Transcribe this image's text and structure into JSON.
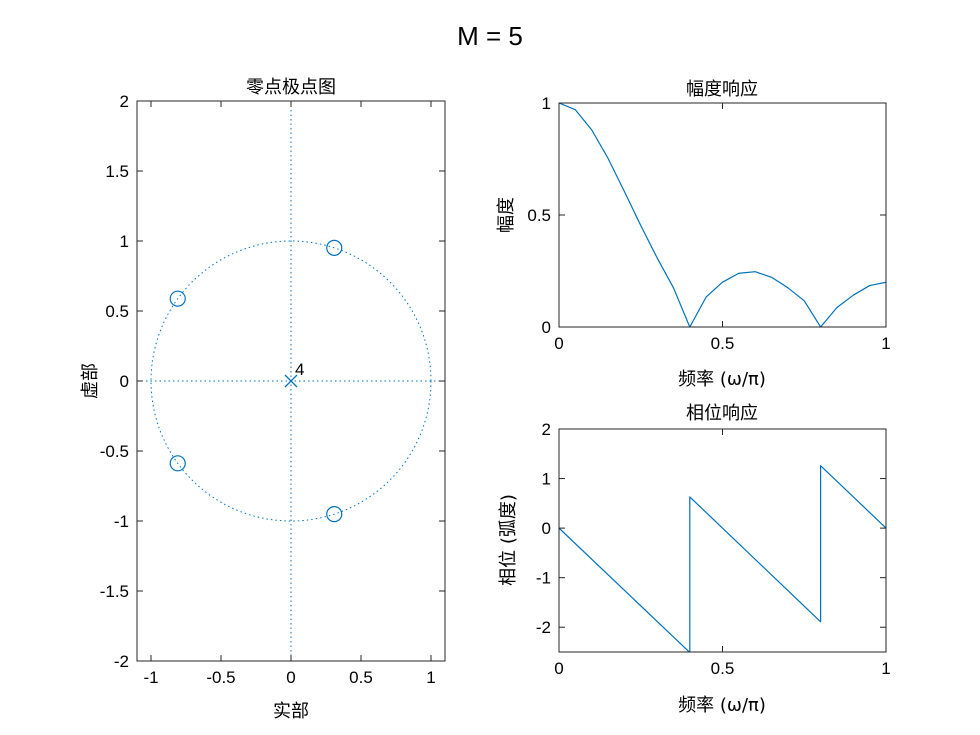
{
  "figure_title": "M = 5",
  "colors": {
    "series": "#0072BD",
    "axes": "#262626",
    "background": "#ffffff"
  },
  "chart_data": [
    {
      "type": "scatter",
      "title": "零点极点图",
      "xlabel": "实部",
      "ylabel": "虚部",
      "xlim": [
        -1.1,
        1.1
      ],
      "ylim": [
        -2,
        2
      ],
      "xticks": [
        -1,
        -0.5,
        0,
        0.5,
        1
      ],
      "xtick_labels": [
        "-1",
        "-0.5",
        "0",
        "0.5",
        "1"
      ],
      "yticks": [
        -2,
        -1.5,
        -1,
        -0.5,
        0,
        0.5,
        1,
        1.5,
        2
      ],
      "ytick_labels": [
        "-2",
        "-1.5",
        "-1",
        "-0.5",
        "0",
        "0.5",
        "1",
        "1.5",
        "2"
      ],
      "zeros": [
        {
          "x": 0.309,
          "y": 0.951
        },
        {
          "x": -0.809,
          "y": 0.588
        },
        {
          "x": -0.809,
          "y": -0.588
        },
        {
          "x": 0.309,
          "y": -0.951
        }
      ],
      "poles": [
        {
          "x": 0,
          "y": 0
        }
      ],
      "pole_multiplicity_label": "4",
      "unit_circle": true,
      "axis_lines": "dotted"
    },
    {
      "type": "line",
      "title": "幅度响应",
      "xlabel": "频率 (ω/π)",
      "ylabel": "幅度",
      "xlim": [
        0,
        1
      ],
      "ylim": [
        0,
        1
      ],
      "xticks": [
        0,
        0.5,
        1
      ],
      "xtick_labels": [
        "0",
        "0.5",
        "1"
      ],
      "yticks": [
        0,
        0.5,
        1
      ],
      "ytick_labels": [
        "0",
        "0.5",
        "1"
      ],
      "x": [
        0,
        0.05,
        0.1,
        0.15,
        0.2,
        0.25,
        0.3,
        0.35,
        0.4,
        0.45,
        0.5,
        0.55,
        0.6,
        0.65,
        0.7,
        0.75,
        0.8,
        0.85,
        0.9,
        0.95,
        1
      ],
      "series": [
        {
          "values": [
            1,
            0.97,
            0.88,
            0.753,
            0.605,
            0.453,
            0.309,
            0.175,
            0,
            0.134,
            0.2,
            0.24,
            0.247,
            0.222,
            0.175,
            0.117,
            0,
            0.087,
            0.142,
            0.185,
            0.2
          ]
        }
      ]
    },
    {
      "type": "line",
      "title": "相位响应",
      "xlabel": "频率 (ω/π)",
      "ylabel": "相位 (弧度)",
      "xlim": [
        0,
        1
      ],
      "ylim": [
        -2.5,
        2
      ],
      "xticks": [
        0,
        0.5,
        1
      ],
      "xtick_labels": [
        "0",
        "0.5",
        "1"
      ],
      "yticks": [
        -2,
        -1,
        0,
        1,
        2
      ],
      "ytick_labels": [
        "-2",
        "-1",
        "0",
        "1",
        "2"
      ],
      "x": [
        0,
        0.4,
        0.4,
        0.8,
        0.8,
        1
      ],
      "series": [
        {
          "values": [
            0,
            -2.51,
            0.63,
            -1.89,
            1.26,
            0
          ]
        }
      ]
    }
  ]
}
